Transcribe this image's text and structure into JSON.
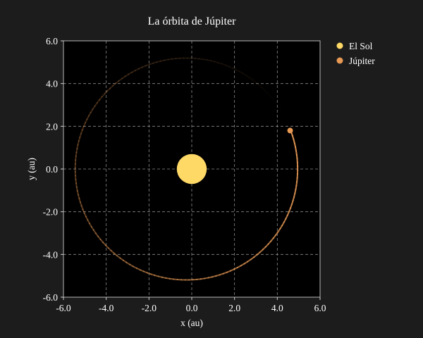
{
  "chart_data": {
    "type": "scatter",
    "title": "La órbita de Júpiter",
    "xlabel": "x (au)",
    "ylabel": "y (au)",
    "xlim": [
      -6.0,
      6.0
    ],
    "ylim": [
      -6.0,
      6.0
    ],
    "xticks": [
      -6.0,
      -4.0,
      -2.0,
      0.0,
      2.0,
      4.0,
      6.0
    ],
    "yticks": [
      -6.0,
      -4.0,
      -2.0,
      0.0,
      2.0,
      4.0,
      6.0
    ],
    "xtick_labels": [
      "-6.0",
      "-4.0",
      "-2.0",
      "0.0",
      "2.0",
      "4.0",
      "6.0"
    ],
    "ytick_labels": [
      "-6.0",
      "-4.0",
      "-2.0",
      "0.0",
      "2.0",
      "4.0",
      "6.0"
    ],
    "grid": true,
    "legend_position": "outside-right-top",
    "background": "#1c1c1c",
    "axes_background": "#000000",
    "series": [
      {
        "name": "El Sol",
        "color": "#ffd966",
        "x": [
          0.0
        ],
        "y": [
          0.0
        ],
        "marker_radius_au": 0.7
      },
      {
        "name": "Júpiter",
        "color": "#e89a55",
        "x": [
          4.6
        ],
        "y": [
          1.8
        ],
        "trail": {
          "semi_major_axis": 5.2,
          "eccentricity": 0.048,
          "perihelion_angle_deg": 0,
          "current_angle_deg": 21.4,
          "fade": "orbit trail fades from current position backward"
        }
      }
    ]
  }
}
